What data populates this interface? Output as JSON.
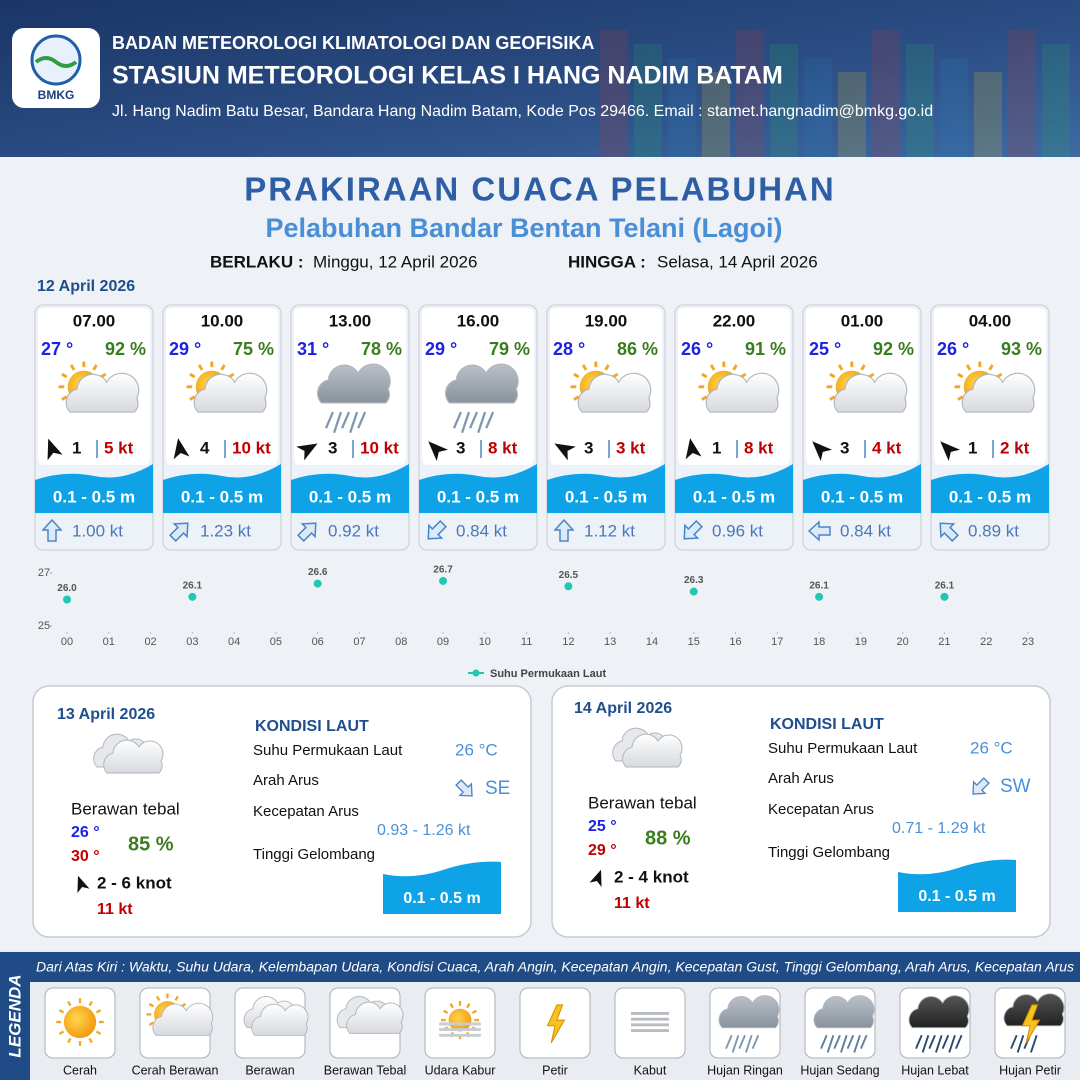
{
  "header": {
    "logo_text": "BMKG",
    "org": "BADAN METEOROLOGI KLIMATOLOGI DAN GEOFISIKA",
    "station": "STASIUN METEOROLOGI KELAS I HANG NADIM BATAM",
    "address": "Jl. Hang Nadim Batu Besar, Bandara Hang Nadim Batam, Kode Pos 29466. Email : stamet.hangnadim@bmkg.go.id"
  },
  "title": "PRAKIRAAN CUACA PELABUHAN",
  "subtitle": "Pelabuhan Bandar Bentan Telani (Lagoi)",
  "validity": {
    "from_label": "BERLAKU :",
    "from": "Minggu, 12 April 2026",
    "to_label": "HINGGA :",
    "to": "Selasa, 14 April 2026"
  },
  "today": {
    "date": "12 April 2026",
    "forecasts": [
      {
        "time": "07.00",
        "temp": "27 °",
        "humidity": "92 %",
        "wind": "1",
        "gust": "5 kt",
        "wave": "0.1 - 0.5 m",
        "current": "1.00 kt"
      },
      {
        "time": "10.00",
        "temp": "29 °",
        "humidity": "75 %",
        "wind": "4",
        "gust": "10 kt",
        "wave": "0.1 - 0.5 m",
        "current": "1.23 kt"
      },
      {
        "time": "13.00",
        "temp": "31 °",
        "humidity": "78 %",
        "wind": "3",
        "gust": "10 kt",
        "wave": "0.1 - 0.5 m",
        "current": "0.92 kt"
      },
      {
        "time": "16.00",
        "temp": "29 °",
        "humidity": "79 %",
        "wind": "3",
        "gust": "8 kt",
        "wave": "0.1 - 0.5 m",
        "current": "0.84 kt"
      },
      {
        "time": "19.00",
        "temp": "28 °",
        "humidity": "86 %",
        "wind": "3",
        "gust": "3 kt",
        "wave": "0.1 - 0.5 m",
        "current": "1.12 kt"
      },
      {
        "time": "22.00",
        "temp": "26 °",
        "humidity": "91 %",
        "wind": "1",
        "gust": "8 kt",
        "wave": "0.1 - 0.5 m",
        "current": "0.96 kt"
      },
      {
        "time": "01.00",
        "temp": "25 °",
        "humidity": "92 %",
        "wind": "3",
        "gust": "4 kt",
        "wave": "0.1 - 0.5 m",
        "current": "0.84 kt"
      },
      {
        "time": "04.00",
        "temp": "26 °",
        "humidity": "93 %",
        "wind": "1",
        "gust": "2 kt",
        "wave": "0.1 - 0.5 m",
        "current": "0.89 kt"
      }
    ]
  },
  "sst_chart": {
    "type": "scatter",
    "x": [
      0,
      3,
      6,
      9,
      12,
      15,
      18,
      21
    ],
    "values": [
      26.0,
      26.1,
      26.6,
      26.7,
      26.5,
      26.3,
      26.1,
      26.1
    ],
    "value_labels": [
      "26.0",
      "26.1",
      "26.6",
      "26.7",
      "26.5",
      "26.3",
      "26.1",
      "26.1"
    ],
    "color": "#1fc7b4",
    "series_name": "Suhu Permukaan Laut",
    "xlim": [
      0,
      23
    ],
    "ylim": [
      25,
      27
    ],
    "yticks": [
      25,
      27
    ],
    "xticks": [
      {
        "value": 0,
        "label": "00"
      },
      {
        "value": 1,
        "label": "01"
      },
      {
        "value": 2,
        "label": "02"
      },
      {
        "value": 3,
        "label": "03"
      },
      {
        "value": 4,
        "label": "04"
      },
      {
        "value": 5,
        "label": "05"
      },
      {
        "value": 6,
        "label": "06"
      },
      {
        "value": 7,
        "label": "07"
      },
      {
        "value": 8,
        "label": "08"
      },
      {
        "value": 9,
        "label": "09"
      },
      {
        "value": 10,
        "label": "10"
      },
      {
        "value": 11,
        "label": "11"
      },
      {
        "value": 12,
        "label": "12"
      },
      {
        "value": 13,
        "label": "13"
      },
      {
        "value": 14,
        "label": "14"
      },
      {
        "value": 15,
        "label": "15"
      },
      {
        "value": 16,
        "label": "16"
      },
      {
        "value": 17,
        "label": "17"
      },
      {
        "value": 18,
        "label": "18"
      },
      {
        "value": 19,
        "label": "19"
      },
      {
        "value": 20,
        "label": "20"
      },
      {
        "value": 21,
        "label": "21"
      },
      {
        "value": 22,
        "label": "22"
      },
      {
        "value": 23,
        "label": "23"
      }
    ]
  },
  "days": [
    {
      "date": "13 April 2026",
      "condition": "Berawan tebal",
      "temp_min": "26 °",
      "temp_max": "30 °",
      "humidity": "85 %",
      "wind": "2 - 6 knot",
      "gust": "11 kt",
      "sea": {
        "title": "KONDISI LAUT",
        "sst_label": "Suhu Permukaan Laut",
        "sst": "26 °C",
        "dir_label": "Arah Arus",
        "dir": "SE",
        "speed_label": "Kecepatan Arus",
        "speed": "0.93 - 1.26 kt",
        "wave_label": "Tinggi Gelombang",
        "wave": "0.1 - 0.5 m"
      }
    },
    {
      "date": "14 April 2026",
      "condition": "Berawan tebal",
      "temp_min": "25 °",
      "temp_max": "29 °",
      "humidity": "88 %",
      "wind": "2 - 4 knot",
      "gust": "11 kt",
      "sea": {
        "title": "KONDISI LAUT",
        "sst_label": "Suhu Permukaan Laut",
        "sst": "26 °C",
        "dir_label": "Arah Arus",
        "dir": "SW",
        "speed_label": "Kecepatan Arus",
        "speed": "0.71 - 1.29 kt",
        "wave_label": "Tinggi Gelombang",
        "wave": "0.1 - 0.5 m"
      }
    }
  ],
  "legend": {
    "title": "LEGENDA",
    "description": "Dari Atas Kiri : Waktu, Suhu Udara, Kelembapan Udara, Kondisi Cuaca, Arah Angin, Kecepatan Angin, Kecepatan Gust, Tinggi Gelombang, Arah Arus, Kecepatan Arus",
    "items": [
      "Cerah",
      "Cerah Berawan",
      "Berawan",
      "Berawan Tebal",
      "Udara Kabur",
      "Petir",
      "Kabut",
      "Hujan Ringan",
      "Hujan Sedang",
      "Hujan Lebat",
      "Hujan Petir"
    ]
  }
}
